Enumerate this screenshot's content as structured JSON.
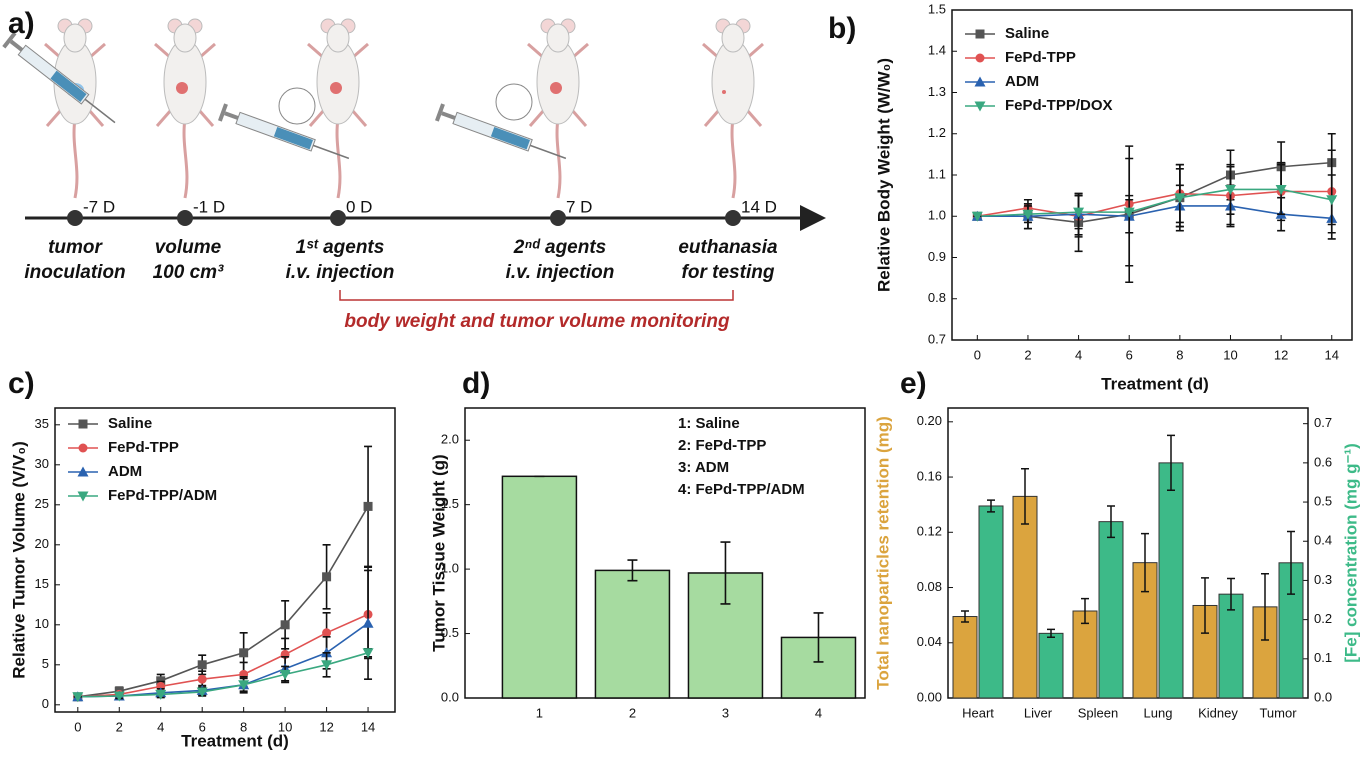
{
  "timeline": {
    "label": "a)",
    "days": [
      "-7 D",
      "-1 D",
      "0 D",
      "7 D",
      "14 D"
    ],
    "events": [
      [
        "tumor",
        "inoculation"
      ],
      [
        "volume",
        "100 cm³"
      ],
      [
        "1ˢᵗ agents",
        "i.v. injection"
      ],
      [
        "2ⁿᵈ agents",
        "i.v. injection"
      ],
      [
        "euthanasia",
        "for testing"
      ]
    ],
    "monitoring": "body weight and tumor volume monitoring"
  },
  "chart_data": [
    {
      "type": "line",
      "label": "b)",
      "xlabel": "Treatment (d)",
      "ylabel": "Relative Body Weight (W/W₀)",
      "x": [
        0,
        2,
        4,
        6,
        8,
        10,
        12,
        14
      ],
      "xlim": [
        -1,
        14.8
      ],
      "xticks": [
        0,
        2,
        4,
        6,
        8,
        10,
        12,
        14
      ],
      "ylim": [
        0.7,
        1.5
      ],
      "yticks": [
        0.7,
        0.8,
        0.9,
        {
          "value": 1,
          "label": "1.0"
        },
        1.1,
        1.2,
        1.3,
        1.4,
        1.5
      ],
      "series": [
        {
          "name": "Saline",
          "color": "#555555",
          "marker": "square",
          "values": [
            1.0,
            1.0,
            0.985,
            1.005,
            1.045,
            1.1,
            1.12,
            1.13
          ],
          "errors": [
            0,
            0.03,
            0.07,
            0.165,
            0.08,
            0.06,
            0.06,
            0.07
          ]
        },
        {
          "name": "FePd-TPP",
          "color": "#e05252",
          "marker": "circle",
          "values": [
            1.0,
            1.02,
            1.0,
            1.03,
            1.055,
            1.05,
            1.06,
            1.06
          ],
          "errors": [
            0,
            0.02,
            0.05,
            0.02,
            0.07,
            0.07,
            0.07,
            0.1
          ]
        },
        {
          "name": "ADM",
          "color": "#2a62b0",
          "marker": "triangle-up",
          "values": [
            1.0,
            1.0,
            1.005,
            1.0,
            1.025,
            1.025,
            1.005,
            0.995
          ],
          "errors": [
            0,
            0.03,
            0.05,
            0.04,
            0.05,
            0.05,
            0.04,
            0.05
          ]
        },
        {
          "name": "FePd-TPP/DOX",
          "color": "#3aa880",
          "marker": "triangle-down",
          "values": [
            1.0,
            1.005,
            1.01,
            1.01,
            1.045,
            1.065,
            1.065,
            1.04
          ],
          "errors": [
            0,
            0.02,
            0.04,
            0.13,
            0.07,
            0.06,
            0.06,
            0.06
          ]
        }
      ]
    },
    {
      "type": "line",
      "label": "c)",
      "xlabel": "Treatment (d)",
      "ylabel": "Relative Tumor Volume (V/V₀)",
      "x": [
        0,
        2,
        4,
        6,
        8,
        10,
        12,
        14
      ],
      "xlim": [
        -1.1,
        15.3
      ],
      "xticks": [
        0,
        2,
        4,
        6,
        8,
        10,
        12,
        14
      ],
      "ylim": [
        -0.9,
        37.1
      ],
      "yticks": [
        0,
        5,
        10,
        15,
        20,
        25,
        30,
        35
      ],
      "series": [
        {
          "name": "Saline",
          "color": "#555555",
          "marker": "square",
          "values": [
            1,
            1.7,
            3,
            5,
            6.5,
            10,
            16,
            24.8
          ],
          "errors": [
            0,
            0.5,
            0.8,
            1.2,
            2.5,
            3,
            4,
            7.5
          ]
        },
        {
          "name": "FePd-TPP",
          "color": "#e05252",
          "marker": "circle",
          "values": [
            1,
            1.3,
            2.3,
            3.2,
            3.8,
            6.3,
            9,
            11.3
          ],
          "errors": [
            0,
            0.3,
            0.6,
            1,
            1.5,
            2,
            2.5,
            5.5
          ]
        },
        {
          "name": "ADM",
          "color": "#2a62b0",
          "marker": "triangle-up",
          "values": [
            1,
            1.1,
            1.5,
            1.8,
            2.5,
            4.5,
            6.5,
            10.2
          ],
          "errors": [
            0,
            0.3,
            0.5,
            0.6,
            1,
            1.5,
            2,
            7
          ]
        },
        {
          "name": "FePd-TPP/ADM",
          "color": "#3aa880",
          "marker": "triangle-down",
          "values": [
            1,
            1.1,
            1.3,
            1.6,
            2.5,
            3.8,
            5,
            6.5
          ],
          "errors": [
            0,
            0.3,
            0.4,
            0.5,
            0.8,
            1,
            1.5,
            0.5
          ]
        }
      ]
    },
    {
      "type": "bar",
      "label": "d)",
      "ylabel": "Tumor Tissue Weight (g)",
      "categories": [
        "1",
        "2",
        "3",
        "4"
      ],
      "values": [
        1.72,
        0.99,
        0.97,
        0.47
      ],
      "errors": [
        0,
        0.08,
        0.24,
        0.19
      ],
      "color": "#a6dba0",
      "ylim": [
        0,
        2.25
      ],
      "yticks": [
        {
          "value": 0,
          "label": "0.0"
        },
        0.5,
        {
          "value": 1,
          "label": "1.0"
        },
        1.5,
        {
          "value": 2,
          "label": "2.0"
        }
      ],
      "annotations": [
        "1: Saline",
        "2: FePd-TPP",
        "3: ADM",
        "4: FePd-TPP/ADM"
      ]
    },
    {
      "type": "grouped-bar",
      "label": "e)",
      "ylabel": "Total nanoparticles retention (mg)",
      "y2label": "[Fe] concentration (mg g⁻¹)",
      "categories": [
        "Heart",
        "Liver",
        "Spleen",
        "Lung",
        "Kidney",
        "Tumor"
      ],
      "ylim": [
        0,
        0.21
      ],
      "yticks": [
        {
          "value": 0,
          "label": "0.00"
        },
        0.04,
        0.08,
        0.12,
        0.16,
        {
          "value": 0.2,
          "label": "0.20"
        }
      ],
      "y2lim": [
        0,
        0.74
      ],
      "y2ticks": [
        {
          "value": 0,
          "label": "0.0"
        },
        0.1,
        0.2,
        0.3,
        0.4,
        0.5,
        0.6,
        0.7
      ],
      "series": [
        {
          "color": "#dba43e",
          "values": [
            0.059,
            0.146,
            0.063,
            0.098,
            0.067,
            0.066
          ],
          "errors": [
            0.004,
            0.02,
            0.009,
            0.021,
            0.02,
            0.024
          ]
        },
        {
          "color": "#3dba88",
          "axis": "y2",
          "values": [
            0.49,
            0.165,
            0.45,
            0.6,
            0.265,
            0.345
          ],
          "errors": [
            0.015,
            0.01,
            0.04,
            0.07,
            0.04,
            0.08
          ]
        }
      ]
    }
  ]
}
